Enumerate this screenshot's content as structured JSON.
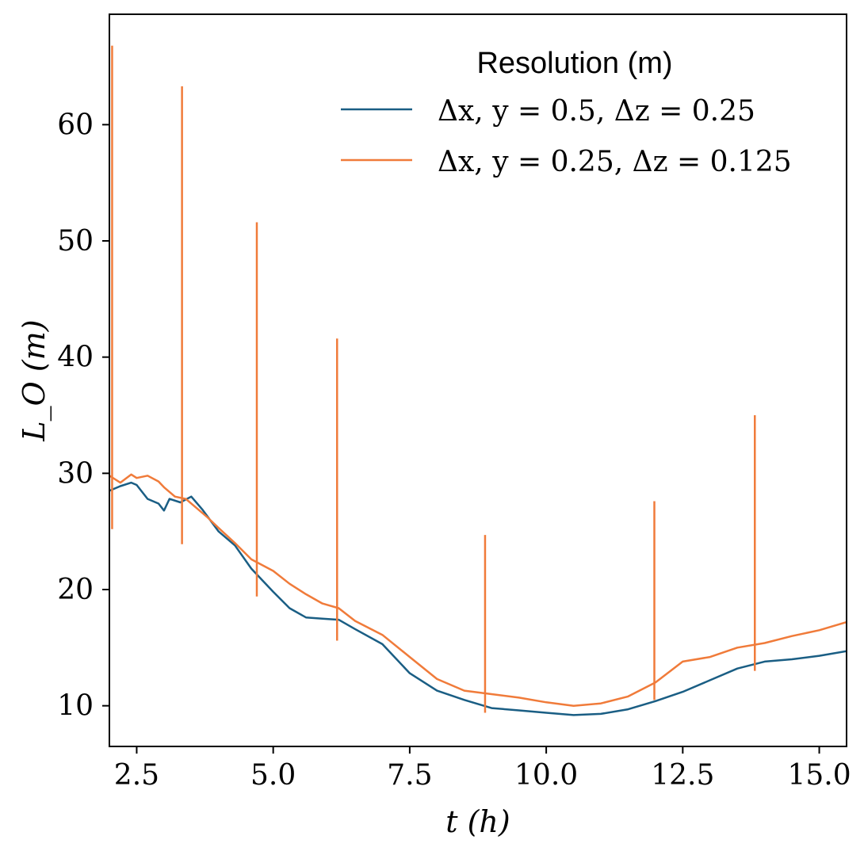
{
  "chart_data": {
    "type": "line",
    "xlabel": "t (h)",
    "ylabel": "L_O (m)",
    "xlim": [
      2.0,
      15.5
    ],
    "ylim": [
      6.5,
      69.5
    ],
    "xticks": [
      "2.5",
      "5.0",
      "7.5",
      "10.0",
      "12.5",
      "15.0"
    ],
    "yticks": [
      "10",
      "20",
      "30",
      "40",
      "50",
      "60"
    ],
    "grid": false,
    "legend": {
      "title": "Resolution (m)",
      "placement": "top-right"
    },
    "series": [
      {
        "name": "Δx, y = 0.5, Δz = 0.25",
        "color": "#1a5e84",
        "x": [
          2.0,
          2.2,
          2.4,
          2.5,
          2.7,
          2.9,
          3.0,
          3.1,
          3.3,
          3.5,
          3.7,
          4.0,
          4.3,
          4.6,
          5.0,
          5.3,
          5.6,
          5.9,
          6.2,
          6.5,
          7.0,
          7.5,
          8.0,
          8.5,
          9.0,
          9.5,
          10.0,
          10.5,
          11.0,
          11.5,
          12.0,
          12.5,
          13.0,
          13.5,
          14.0,
          14.5,
          15.0,
          15.5
        ],
        "y": [
          28.5,
          28.9,
          29.2,
          29.0,
          27.8,
          27.4,
          26.8,
          27.8,
          27.5,
          28.0,
          26.9,
          25.0,
          23.8,
          21.8,
          19.8,
          18.4,
          17.6,
          17.5,
          17.4,
          16.6,
          15.3,
          12.8,
          11.3,
          10.5,
          9.8,
          9.6,
          9.4,
          9.2,
          9.3,
          9.7,
          10.4,
          11.2,
          12.2,
          13.2,
          13.8,
          14.0,
          14.3,
          14.7
        ]
      },
      {
        "name": "Δx, y = 0.25, Δz = 0.125",
        "color": "#f07b3a",
        "x": [
          2.0,
          2.2,
          2.4,
          2.5,
          2.7,
          2.9,
          3.0,
          3.2,
          3.4,
          3.6,
          3.8,
          4.0,
          4.3,
          4.6,
          5.0,
          5.3,
          5.6,
          5.9,
          6.2,
          6.5,
          7.0,
          7.5,
          8.0,
          8.5,
          9.0,
          9.5,
          10.0,
          10.5,
          11.0,
          11.5,
          12.0,
          12.5,
          13.0,
          13.5,
          14.0,
          14.5,
          15.0,
          15.5
        ],
        "y": [
          29.8,
          29.2,
          29.9,
          29.6,
          29.8,
          29.3,
          28.8,
          28.0,
          27.8,
          27.0,
          26.2,
          25.3,
          24.0,
          22.6,
          21.6,
          20.5,
          19.6,
          18.8,
          18.4,
          17.3,
          16.1,
          14.2,
          12.3,
          11.3,
          11.0,
          10.7,
          10.3,
          10.0,
          10.2,
          10.8,
          12.0,
          13.8,
          14.2,
          15.0,
          15.4,
          16.0,
          16.5,
          17.2
        ]
      }
    ],
    "error_bars": {
      "series": "Δx, y = 0.25, Δz = 0.125",
      "x": [
        2.05,
        3.33,
        4.7,
        6.17,
        8.88,
        11.98,
        13.82
      ],
      "low": [
        25.2,
        23.9,
        19.4,
        15.6,
        9.4,
        10.5,
        13.0
      ],
      "high": [
        66.8,
        63.3,
        51.6,
        41.6,
        24.7,
        27.6,
        35.0
      ]
    }
  }
}
